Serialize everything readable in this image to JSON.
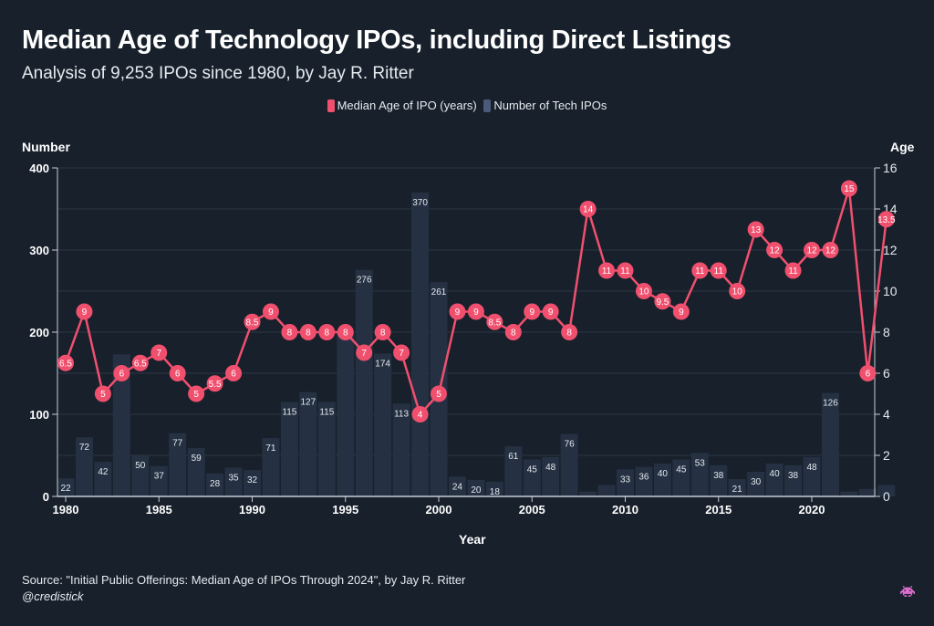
{
  "header": {
    "title": "Median Age of Technology IPOs, including Direct Listings",
    "subtitle": "Analysis of 9,253 IPOs since 1980, by Jay R. Ritter"
  },
  "legend": {
    "items": [
      {
        "label": "Median Age of IPO (years)",
        "color": "#f0506e"
      },
      {
        "label": "Number of Tech IPOs",
        "color": "#4a5a7a"
      }
    ]
  },
  "footer": {
    "source": "Source: \"Initial Public Offerings: Median Age of IPOs Through 2024\", by Jay R. Ritter",
    "handle": "@credistick",
    "logo_icon": "space-invader-icon"
  },
  "colors": {
    "background": "#17202b",
    "bar": "#253142",
    "line": "#f0506e",
    "grid": "#2c3745",
    "axis": "#c9ced6"
  },
  "chart_data": {
    "type": "bar+line",
    "title": "Median Age of Technology IPOs, including Direct Listings",
    "subtitle": "Analysis of 9,253 IPOs since 1980, by Jay R. Ritter",
    "xlabel": "Year",
    "ylabel_left": "Number",
    "ylabel_right": "Age",
    "ylim_left": [
      0,
      400
    ],
    "ylim_right": [
      0,
      16
    ],
    "yticks_left": [
      0,
      100,
      200,
      300,
      400
    ],
    "yticks_right": [
      0,
      2,
      4,
      6,
      8,
      10,
      12,
      14,
      16
    ],
    "xticks": [
      1980,
      1985,
      1990,
      1995,
      2000,
      2005,
      2010,
      2015,
      2020
    ],
    "grid": true,
    "legend_position": "top-center",
    "x": [
      1980,
      1981,
      1982,
      1983,
      1984,
      1985,
      1986,
      1987,
      1988,
      1989,
      1990,
      1991,
      1992,
      1993,
      1994,
      1995,
      1996,
      1997,
      1998,
      1999,
      2000,
      2001,
      2002,
      2003,
      2004,
      2005,
      2006,
      2007,
      2008,
      2009,
      2010,
      2011,
      2012,
      2013,
      2014,
      2015,
      2016,
      2017,
      2018,
      2019,
      2020,
      2021,
      2022,
      2023,
      2024
    ],
    "series": [
      {
        "name": "Number of Tech IPOs",
        "type": "bar",
        "axis": "left",
        "values": [
          22,
          72,
          42,
          173,
          50,
          37,
          77,
          59,
          28,
          35,
          32,
          71,
          115,
          127,
          115,
          200,
          276,
          174,
          113,
          370,
          261,
          24,
          20,
          18,
          61,
          45,
          48,
          76,
          6,
          14,
          33,
          36,
          40,
          45,
          53,
          38,
          21,
          30,
          40,
          38,
          48,
          126,
          6,
          9,
          14
        ],
        "labels": [
          "22",
          "72",
          "42",
          "",
          "50",
          "37",
          "77",
          "59",
          "28",
          "35",
          "32",
          "71",
          "115",
          "127",
          "115",
          "",
          "276",
          "174",
          "113",
          "370",
          "261",
          "24",
          "20",
          "18",
          "61",
          "45",
          "48",
          "76",
          "",
          "",
          "33",
          "36",
          "40",
          "45",
          "53",
          "38",
          "21",
          "30",
          "40",
          "38",
          "48",
          "126",
          "",
          "",
          ""
        ]
      },
      {
        "name": "Median Age of IPO (years)",
        "type": "line",
        "axis": "right",
        "values": [
          6.5,
          9,
          5,
          6,
          6.5,
          7,
          6,
          5,
          5.5,
          6,
          8.5,
          9,
          8,
          8,
          8,
          8,
          7,
          8,
          7,
          4,
          5,
          9,
          9,
          8.5,
          8,
          9,
          9,
          8,
          14,
          11,
          11,
          10,
          9.5,
          9,
          11,
          11,
          10,
          13,
          12,
          11,
          12,
          12,
          15,
          6,
          13.5
        ],
        "labels": [
          "6.5",
          "9",
          "5",
          "6",
          "6.5",
          "7",
          "6",
          "5",
          "5.5",
          "6",
          "8.5",
          "9",
          "8",
          "8",
          "8",
          "8",
          "7",
          "8",
          "7",
          "4",
          "5",
          "9",
          "9",
          "8.5",
          "8",
          "9",
          "9",
          "8",
          "14",
          "11",
          "11",
          "10",
          "9.5",
          "9",
          "11",
          "11",
          "10",
          "13",
          "12",
          "11",
          "12",
          "12",
          "15",
          "6",
          "13.5"
        ]
      }
    ]
  }
}
